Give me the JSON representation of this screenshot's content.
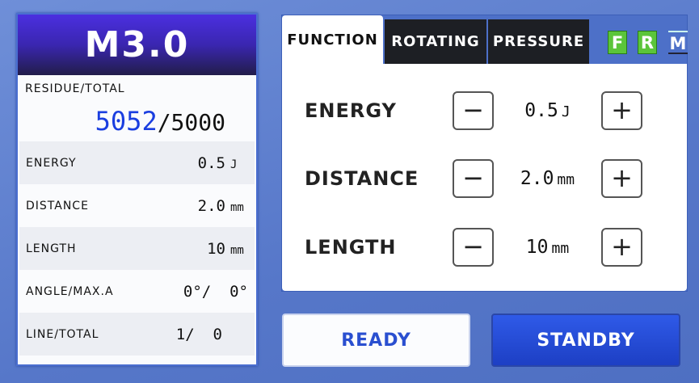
{
  "left": {
    "mode": "M3.0",
    "residue_label": "RESIDUE/TOTAL",
    "residue": "5052",
    "total": "/5000",
    "rows": [
      {
        "label": "ENERGY",
        "value": "0.5",
        "unit": "J"
      },
      {
        "label": "DISTANCE",
        "value": "2.0",
        "unit": "mm"
      },
      {
        "label": "LENGTH",
        "value": "10",
        "unit": "mm"
      },
      {
        "label": "ANGLE/MAX.A",
        "value": "0°/  0°",
        "unit": ""
      },
      {
        "label": "LINE/TOTAL",
        "value": "1/  0",
        "unit": ""
      }
    ]
  },
  "tabs": [
    {
      "label": "FUNCTION",
      "active": true
    },
    {
      "label": "ROTATING",
      "active": false
    },
    {
      "label": "PRESSURE",
      "active": false
    }
  ],
  "badges": [
    {
      "label": "F",
      "color": "#5bc53a"
    },
    {
      "label": "R",
      "color": "#5bc53a"
    },
    {
      "label": "M",
      "color": "#4d70c8"
    }
  ],
  "params": [
    {
      "label": "ENERGY",
      "value": "0.5",
      "unit": "J",
      "minus": "−",
      "plus": "+"
    },
    {
      "label": "DISTANCE",
      "value": "2.0",
      "unit": "mm",
      "minus": "−",
      "plus": "+"
    },
    {
      "label": "LENGTH",
      "value": "10",
      "unit": "mm",
      "minus": "−",
      "plus": "+"
    }
  ],
  "buttons": {
    "ready": "READY",
    "standby": "STANDBY"
  }
}
